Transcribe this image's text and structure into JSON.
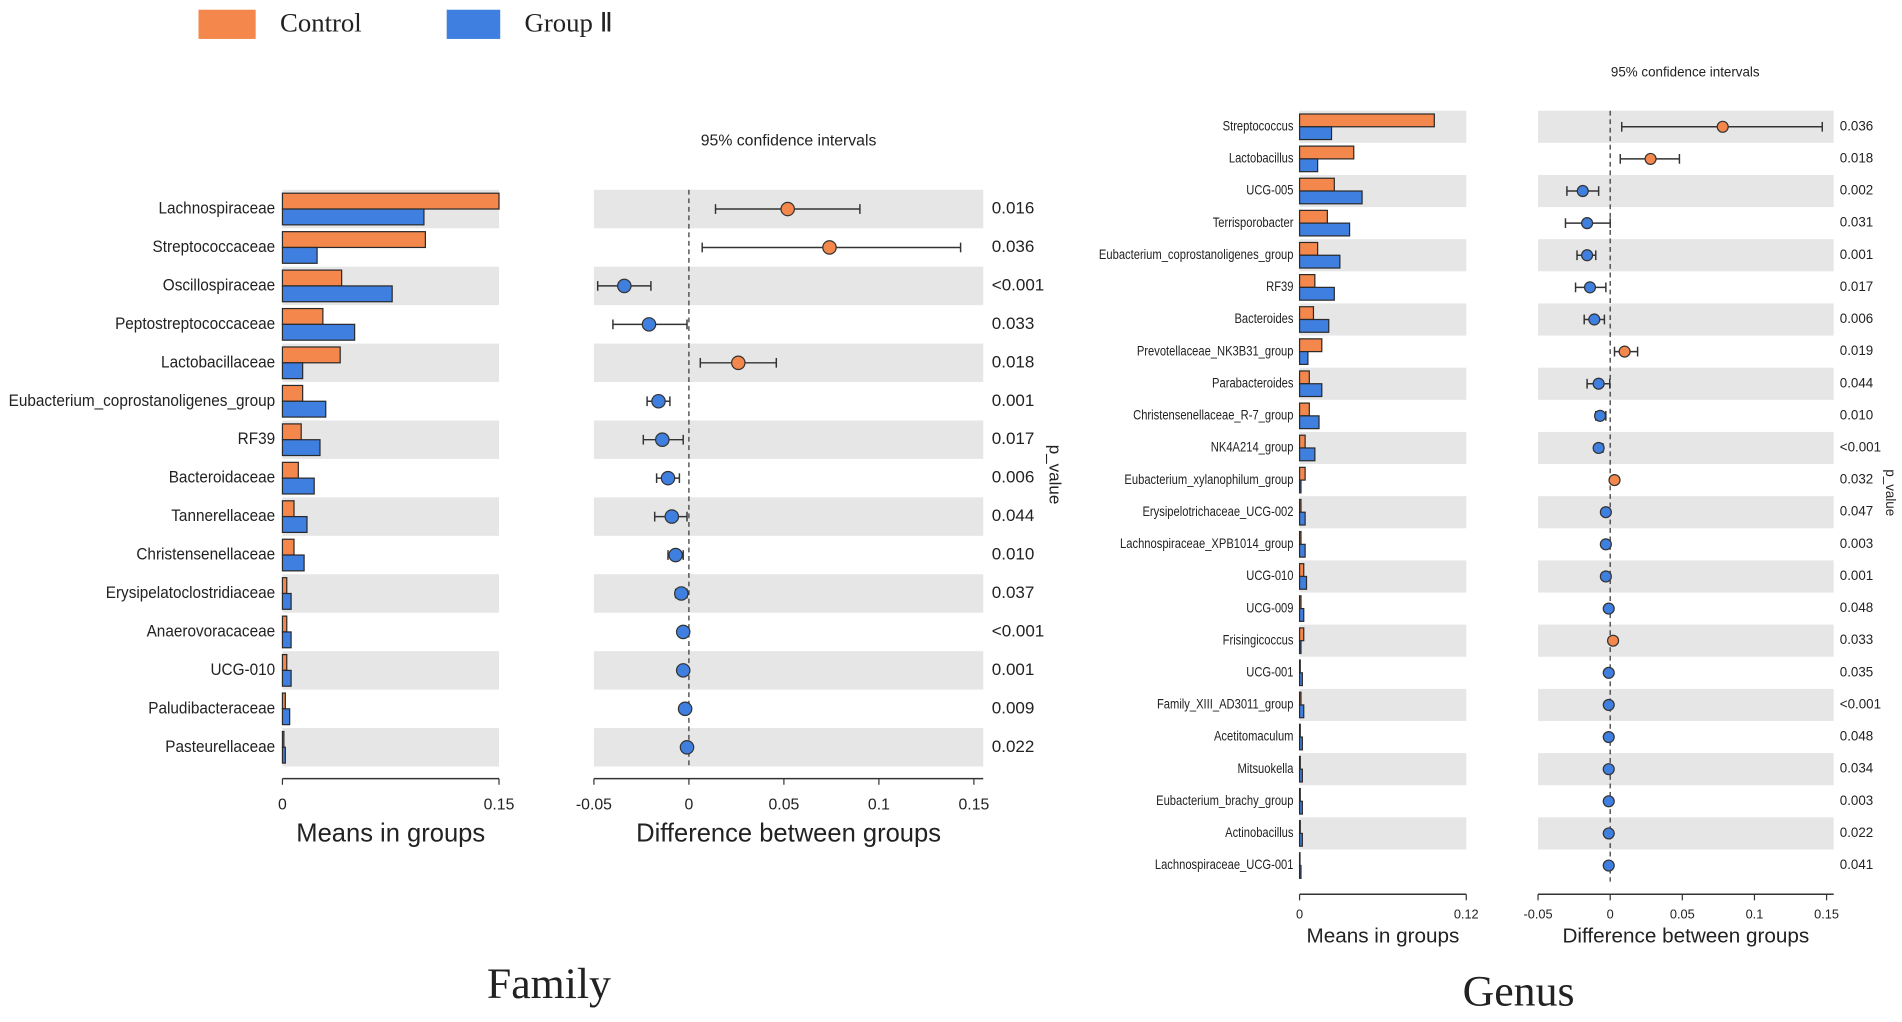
{
  "legend": [
    {
      "name": "Control",
      "color": "#f4874b"
    },
    {
      "name": "Group Ⅱ",
      "color": "#3f7fe0"
    }
  ],
  "chart_data": [
    {
      "type": "extended_error_bar",
      "title": "Family",
      "categories": [
        "Lachnospiraceae",
        "Streptococcaceae",
        "Oscillospiraceae",
        "Peptostreptococcaceae",
        "Lactobacillaceae",
        "Eubacterium_coprostanoligenes_group",
        "RF39",
        "Bacteroidaceae",
        "Tannerellaceae",
        "Christensenellaceae",
        "Erysipelatoclostridiaceae",
        "Anaerovoracaceae",
        "UCG-010",
        "Paludibacteraceae",
        "Pasteurellaceae"
      ],
      "series": [
        {
          "values": [
            0.15,
            0.099,
            0.041,
            0.028,
            0.04,
            0.014,
            0.013,
            0.011,
            0.008,
            0.008,
            0.003,
            0.003,
            0.003,
            0.002,
            0.001
          ]
        },
        {
          "values": [
            0.098,
            0.024,
            0.076,
            0.05,
            0.014,
            0.03,
            0.026,
            0.022,
            0.017,
            0.015,
            0.006,
            0.006,
            0.006,
            0.005,
            0.002
          ]
        }
      ],
      "xlim": [
        0,
        0.15
      ],
      "xticks": [
        0,
        0.15
      ],
      "xlabel": "Means in groups",
      "difference": {
        "title": "95% confidence intervals",
        "values": [
          0.052,
          0.074,
          -0.034,
          -0.021,
          0.026,
          -0.016,
          -0.014,
          -0.011,
          -0.009,
          -0.007,
          -0.004,
          -0.003,
          -0.003,
          -0.002,
          -0.001
        ],
        "ci_low": [
          0.014,
          0.007,
          -0.048,
          -0.04,
          0.006,
          -0.022,
          -0.024,
          -0.017,
          -0.018,
          -0.011,
          -0.007,
          -0.005,
          -0.005,
          -0.004,
          -0.002
        ],
        "ci_high": [
          0.09,
          0.143,
          -0.02,
          -0.001,
          0.046,
          -0.01,
          -0.003,
          -0.005,
          -0.001,
          -0.003,
          -0.001,
          -0.001,
          -0.001,
          -0.001,
          -0.0005
        ],
        "xlim": [
          -0.05,
          0.15
        ],
        "xticks": [
          -0.05,
          0,
          0.05,
          0.1,
          0.15
        ],
        "xlabel": "Difference between groups"
      },
      "p_values": [
        "0.016",
        "0.036",
        "<0.001",
        "0.033",
        "0.018",
        "0.001",
        "0.017",
        "0.006",
        "0.044",
        "0.010",
        "0.037",
        "<0.001",
        "0.001",
        "0.009",
        "0.022"
      ],
      "p_label": "p_value"
    },
    {
      "type": "extended_error_bar",
      "title": "Genus",
      "categories": [
        "Streptococcus",
        "Lactobacillus",
        "UCG-005",
        "Terrisporobacter",
        "Eubacterium_coprostanoligenes_group",
        "RF39",
        "Bacteroides",
        "Prevotellaceae_NK3B31_group",
        "Parabacteroides",
        "Christensenellaceae_R-7_group",
        "NK4A214_group",
        "Eubacterium_xylanophilum_group",
        "Erysipelotrichaceae_UCG-002",
        "Lachnospiraceae_XPB1014_group",
        "UCG-010",
        "UCG-009",
        "Frisingicoccus",
        "UCG-001",
        "Family_XIII_AD3011_group",
        "Acetitomaculum",
        "Mitsuokella",
        "Eubacterium_brachy_group",
        "Actinobacillus",
        "Lachnospiraceae_UCG-001"
      ],
      "series": [
        {
          "values": [
            0.097,
            0.039,
            0.025,
            0.02,
            0.013,
            0.011,
            0.01,
            0.016,
            0.007,
            0.007,
            0.004,
            0.004,
            0.001,
            0.001,
            0.003,
            0.001,
            0.003,
            0.0005,
            0.001,
            0.0005,
            0.0005,
            0.0005,
            0.0005,
            0.0003
          ]
        },
        {
          "values": [
            0.023,
            0.013,
            0.045,
            0.036,
            0.029,
            0.025,
            0.021,
            0.006,
            0.016,
            0.014,
            0.011,
            0.001,
            0.004,
            0.004,
            0.005,
            0.003,
            0.001,
            0.002,
            0.003,
            0.002,
            0.002,
            0.002,
            0.002,
            0.001
          ]
        }
      ],
      "xlim": [
        0,
        0.12
      ],
      "xticks": [
        0,
        0.12
      ],
      "xlabel": "Means in groups",
      "difference": {
        "title": "95% confidence intervals",
        "values": [
          0.078,
          0.028,
          -0.019,
          -0.016,
          -0.016,
          -0.014,
          -0.011,
          0.01,
          -0.008,
          -0.007,
          -0.008,
          0.003,
          -0.003,
          -0.003,
          -0.003,
          -0.001,
          0.002,
          -0.001,
          -0.001,
          -0.001,
          -0.001,
          -0.001,
          -0.001,
          -0.001
        ],
        "ci_low": [
          0.008,
          0.007,
          -0.03,
          -0.031,
          -0.023,
          -0.024,
          -0.018,
          0.003,
          -0.016,
          -0.01,
          -0.01,
          0.002,
          -0.004,
          -0.004,
          -0.004,
          -0.002,
          0.001,
          -0.002,
          -0.002,
          -0.002,
          -0.002,
          -0.002,
          -0.002,
          -0.002
        ],
        "ci_high": [
          0.147,
          0.048,
          -0.008,
          0,
          -0.01,
          -0.003,
          -0.004,
          0.019,
          -0.0003,
          -0.003,
          -0.005,
          0.005,
          -0.001,
          -0.001,
          -0.001,
          -0.0003,
          0.003,
          -0.0003,
          -0.0003,
          -0.0003,
          -0.0003,
          -0.0003,
          -0.0003,
          -0.0003
        ],
        "xlim": [
          -0.05,
          0.15
        ],
        "xticks": [
          -0.05,
          0,
          0.05,
          0.1,
          0.15
        ],
        "xlabel": "Difference between groups"
      },
      "p_values": [
        "0.036",
        "0.018",
        "0.002",
        "0.031",
        "0.001",
        "0.017",
        "0.006",
        "0.019",
        "0.044",
        "0.010",
        "<0.001",
        "0.032",
        "0.047",
        "0.003",
        "0.001",
        "0.048",
        "0.033",
        "0.035",
        "<0.001",
        "0.048",
        "0.034",
        "0.003",
        "0.022",
        "0.041"
      ],
      "p_label": "p_value"
    }
  ]
}
